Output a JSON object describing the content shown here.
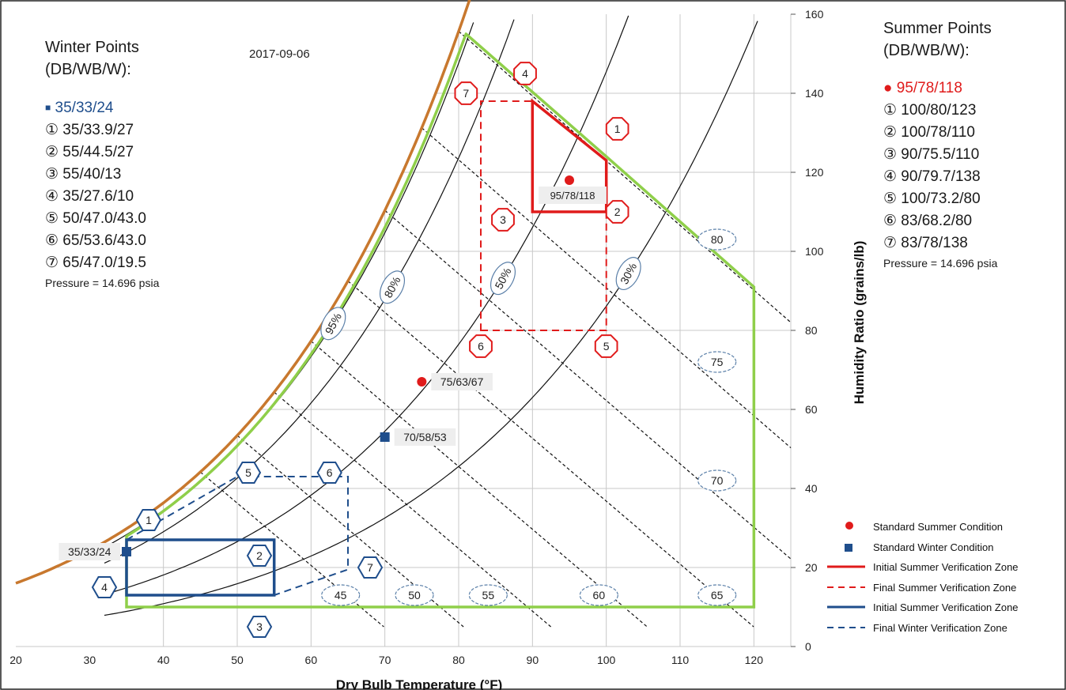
{
  "chart_data": {
    "type": "scatter",
    "date": "2017-09-06",
    "xlabel": "Dry Bulb Temperature (°F)",
    "ylabel": "Humidity Ratio (grains/lb)",
    "xlim": [
      20,
      125
    ],
    "ylim": [
      0,
      160
    ],
    "xticks": [
      20,
      30,
      40,
      50,
      60,
      70,
      80,
      90,
      100,
      110,
      120
    ],
    "yticks": [
      0,
      20,
      40,
      60,
      80,
      100,
      120,
      140,
      160
    ],
    "grid": true,
    "pressure_psia": 14.696,
    "rh_curves": [
      {
        "label": "95%",
        "rh": 0.95,
        "label_at_t": 63
      },
      {
        "label": "80%",
        "rh": 0.8,
        "label_at_t": 71
      },
      {
        "label": "50%",
        "rh": 0.5,
        "label_at_t": 86
      },
      {
        "label": "30%",
        "rh": 0.3,
        "label_at_t": 103
      }
    ],
    "wet_bulb_lines": [
      {
        "label": "45",
        "wb": 45,
        "label_point": [
          64,
          13
        ]
      },
      {
        "label": "50",
        "wb": 50,
        "label_point": [
          74,
          13
        ]
      },
      {
        "label": "55",
        "wb": 55,
        "label_point": [
          84,
          13
        ]
      },
      {
        "label": "60",
        "wb": 60,
        "label_point": [
          99,
          13
        ]
      },
      {
        "label": "65",
        "wb": 65,
        "label_point": [
          115,
          13
        ]
      },
      {
        "label": "70",
        "wb": 70,
        "label_point": [
          115,
          42
        ]
      },
      {
        "label": "75",
        "wb": 75,
        "label_point": [
          115,
          72
        ]
      },
      {
        "label": "80",
        "wb": 80,
        "label_point": [
          115,
          103
        ]
      }
    ],
    "comfort_envelope": {
      "color": "#8fcf4a",
      "points": [
        [
          35,
          10
        ],
        [
          120,
          10
        ],
        [
          120,
          91
        ],
        [
          100,
          124
        ],
        [
          81,
          155
        ]
      ]
    },
    "standard_points": [
      {
        "label": "35/33/24",
        "x": 35,
        "y": 24,
        "kind": "winter"
      },
      {
        "label": "70/58/53",
        "x": 70,
        "y": 53,
        "kind": "winter"
      },
      {
        "label": "75/63/67",
        "x": 75,
        "y": 67,
        "kind": "summer"
      },
      {
        "label": "95/78/118",
        "x": 95,
        "y": 118,
        "kind": "summer"
      }
    ],
    "zones": {
      "initial_summer": {
        "color": "#e01b1b",
        "style": "solid",
        "points": [
          [
            90,
            110
          ],
          [
            100,
            110
          ],
          [
            100,
            123
          ],
          [
            90,
            138
          ]
        ]
      },
      "final_summer": {
        "color": "#e01b1b",
        "style": "dashed",
        "points": [
          [
            83,
            80
          ],
          [
            100,
            80
          ],
          [
            100,
            110
          ],
          [
            100,
            123
          ],
          [
            90,
            138
          ],
          [
            83,
            138
          ]
        ]
      },
      "initial_winter": {
        "color": "#1f4e8c",
        "style": "solid",
        "points": [
          [
            35,
            13
          ],
          [
            55,
            13
          ],
          [
            55,
            27
          ],
          [
            35,
            27
          ]
        ]
      },
      "final_winter": {
        "color": "#1f4e8c",
        "style": "dashed",
        "points": [
          [
            35,
            27
          ],
          [
            50,
            43
          ],
          [
            65,
            43
          ],
          [
            65,
            19.5
          ],
          [
            55,
            13
          ]
        ]
      }
    },
    "summer_markers": [
      {
        "n": "1",
        "x": 101.5,
        "y": 131
      },
      {
        "n": "2",
        "x": 101.5,
        "y": 110
      },
      {
        "n": "3",
        "x": 86,
        "y": 108
      },
      {
        "n": "4",
        "x": 89,
        "y": 145
      },
      {
        "n": "5",
        "x": 100,
        "y": 76
      },
      {
        "n": "6",
        "x": 83,
        "y": 76
      },
      {
        "n": "7",
        "x": 81,
        "y": 140
      }
    ],
    "winter_markers": [
      {
        "n": "1",
        "x": 38,
        "y": 32
      },
      {
        "n": "2",
        "x": 53,
        "y": 23
      },
      {
        "n": "3",
        "x": 53,
        "y": 5
      },
      {
        "n": "4",
        "x": 32,
        "y": 15
      },
      {
        "n": "5",
        "x": 51.5,
        "y": 44
      },
      {
        "n": "6",
        "x": 62.5,
        "y": 44
      },
      {
        "n": "7",
        "x": 68,
        "y": 20
      }
    ]
  },
  "winter_panel": {
    "title_line1": "Winter Points",
    "title_line2": "(DB/WB/W):",
    "standard": "35/33/24",
    "points": [
      "① 35/33.9/27",
      "② 55/44.5/27",
      "③ 55/40/13",
      "④ 35/27.6/10",
      "⑤ 50/47.0/43.0",
      "⑥ 65/53.6/43.0",
      "⑦ 65/47.0/19.5"
    ],
    "pressure": "Pressure = 14.696 psia"
  },
  "summer_panel": {
    "title_line1": "Summer Points",
    "title_line2": "(DB/WB/W):",
    "standard": "95/78/118",
    "points": [
      "① 100/80/123",
      "② 100/78/110",
      "③ 90/75.5/110",
      "④ 90/79.7/138",
      "⑤ 100/73.2/80",
      "⑥ 83/68.2/80",
      "⑦ 83/78/138"
    ],
    "pressure": "Pressure = 14.696 psia"
  },
  "legend": {
    "position": "bottom-right",
    "items": [
      {
        "label": "Standard Summer Condition",
        "kind": "summer-dot"
      },
      {
        "label": "Standard Winter Condition",
        "kind": "winter-square"
      },
      {
        "label": "Initial Summer Verification Zone",
        "kind": "red-solid"
      },
      {
        "label": "Final Summer Verification Zone",
        "kind": "red-dashed"
      },
      {
        "label": "Initial Summer Verification Zone",
        "kind": "blue-solid"
      },
      {
        "label": "Final Winter Verification Zone",
        "kind": "blue-dashed"
      }
    ]
  },
  "colors": {
    "saturation": "#c8782e",
    "envelope": "#8fcf4a",
    "summer": "#e01b1b",
    "winter": "#1f4e8c",
    "grid": "#c8c8c8",
    "curve": "#111111"
  }
}
